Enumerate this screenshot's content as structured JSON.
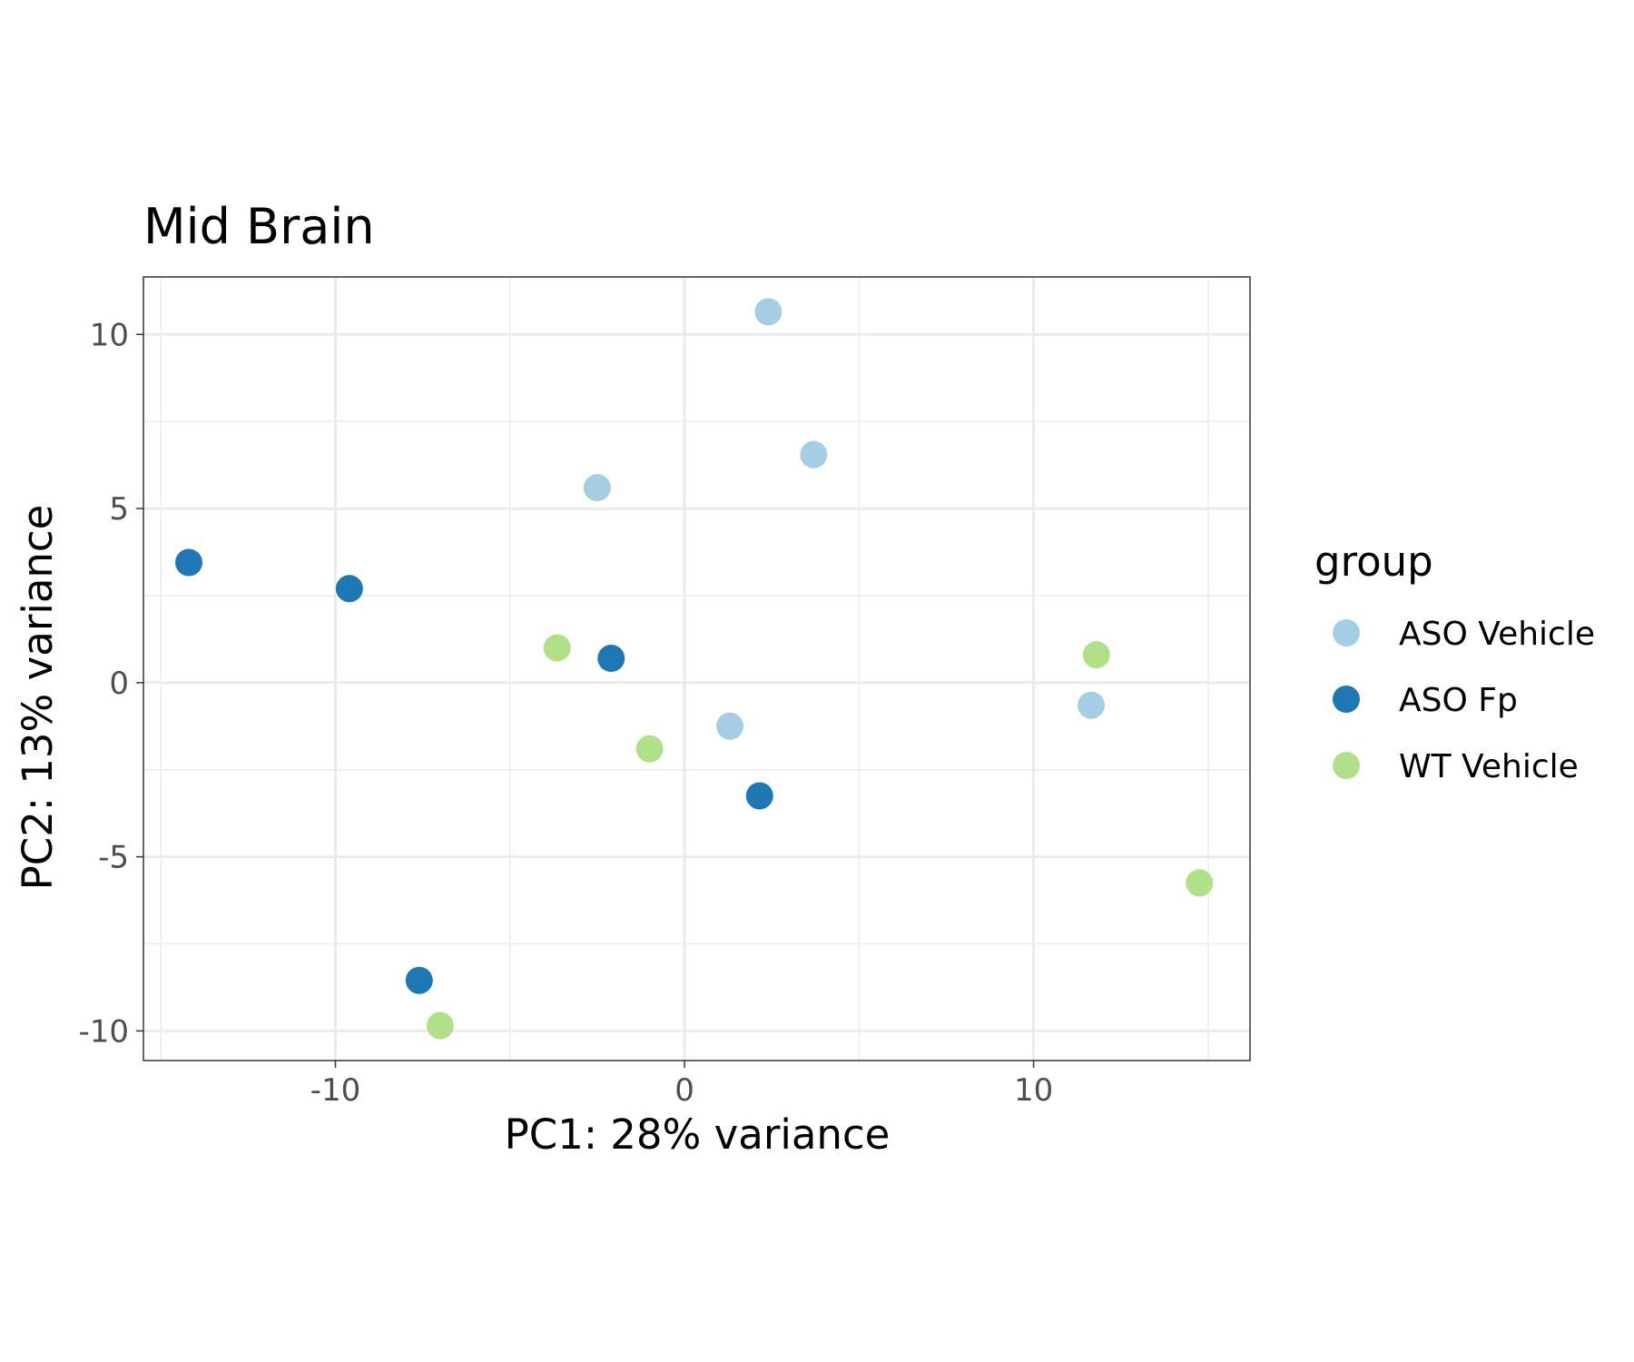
{
  "chart_data": {
    "type": "scatter",
    "title": "Mid Brain",
    "xlabel": "PC1: 28% variance",
    "ylabel": "PC2: 13% variance",
    "xlim": [
      -15.5,
      16.2
    ],
    "ylim": [
      -10.85,
      11.65
    ],
    "x_ticks": [
      -10,
      0,
      10
    ],
    "x_tick_labels": [
      "-10",
      "0",
      "10"
    ],
    "y_ticks": [
      10,
      5,
      0,
      -5,
      -10
    ],
    "y_tick_labels": [
      "10",
      "5",
      "0",
      "-5",
      "-10"
    ],
    "grid": true,
    "legend": {
      "title": "group",
      "position": "right"
    },
    "series": [
      {
        "name": "ASO Vehicle",
        "color": "#a6cee3",
        "points": [
          {
            "x": 2.4,
            "y": 10.65
          },
          {
            "x": 3.7,
            "y": 6.55
          },
          {
            "x": -2.5,
            "y": 5.6
          },
          {
            "x": 1.3,
            "y": -1.25
          },
          {
            "x": 11.65,
            "y": -0.65
          }
        ]
      },
      {
        "name": "ASO Fp",
        "color": "#1f78b4",
        "points": [
          {
            "x": -14.2,
            "y": 3.45
          },
          {
            "x": -9.6,
            "y": 2.7
          },
          {
            "x": -2.1,
            "y": 0.7
          },
          {
            "x": 2.15,
            "y": -3.25
          },
          {
            "x": -7.6,
            "y": -8.55
          }
        ]
      },
      {
        "name": "WT Vehicle",
        "color": "#b2df8a",
        "points": [
          {
            "x": -3.65,
            "y": 1.0
          },
          {
            "x": 11.8,
            "y": 0.8
          },
          {
            "x": -1.0,
            "y": -1.9
          },
          {
            "x": 14.75,
            "y": -5.75
          },
          {
            "x": -7.0,
            "y": -9.85
          }
        ]
      }
    ]
  }
}
